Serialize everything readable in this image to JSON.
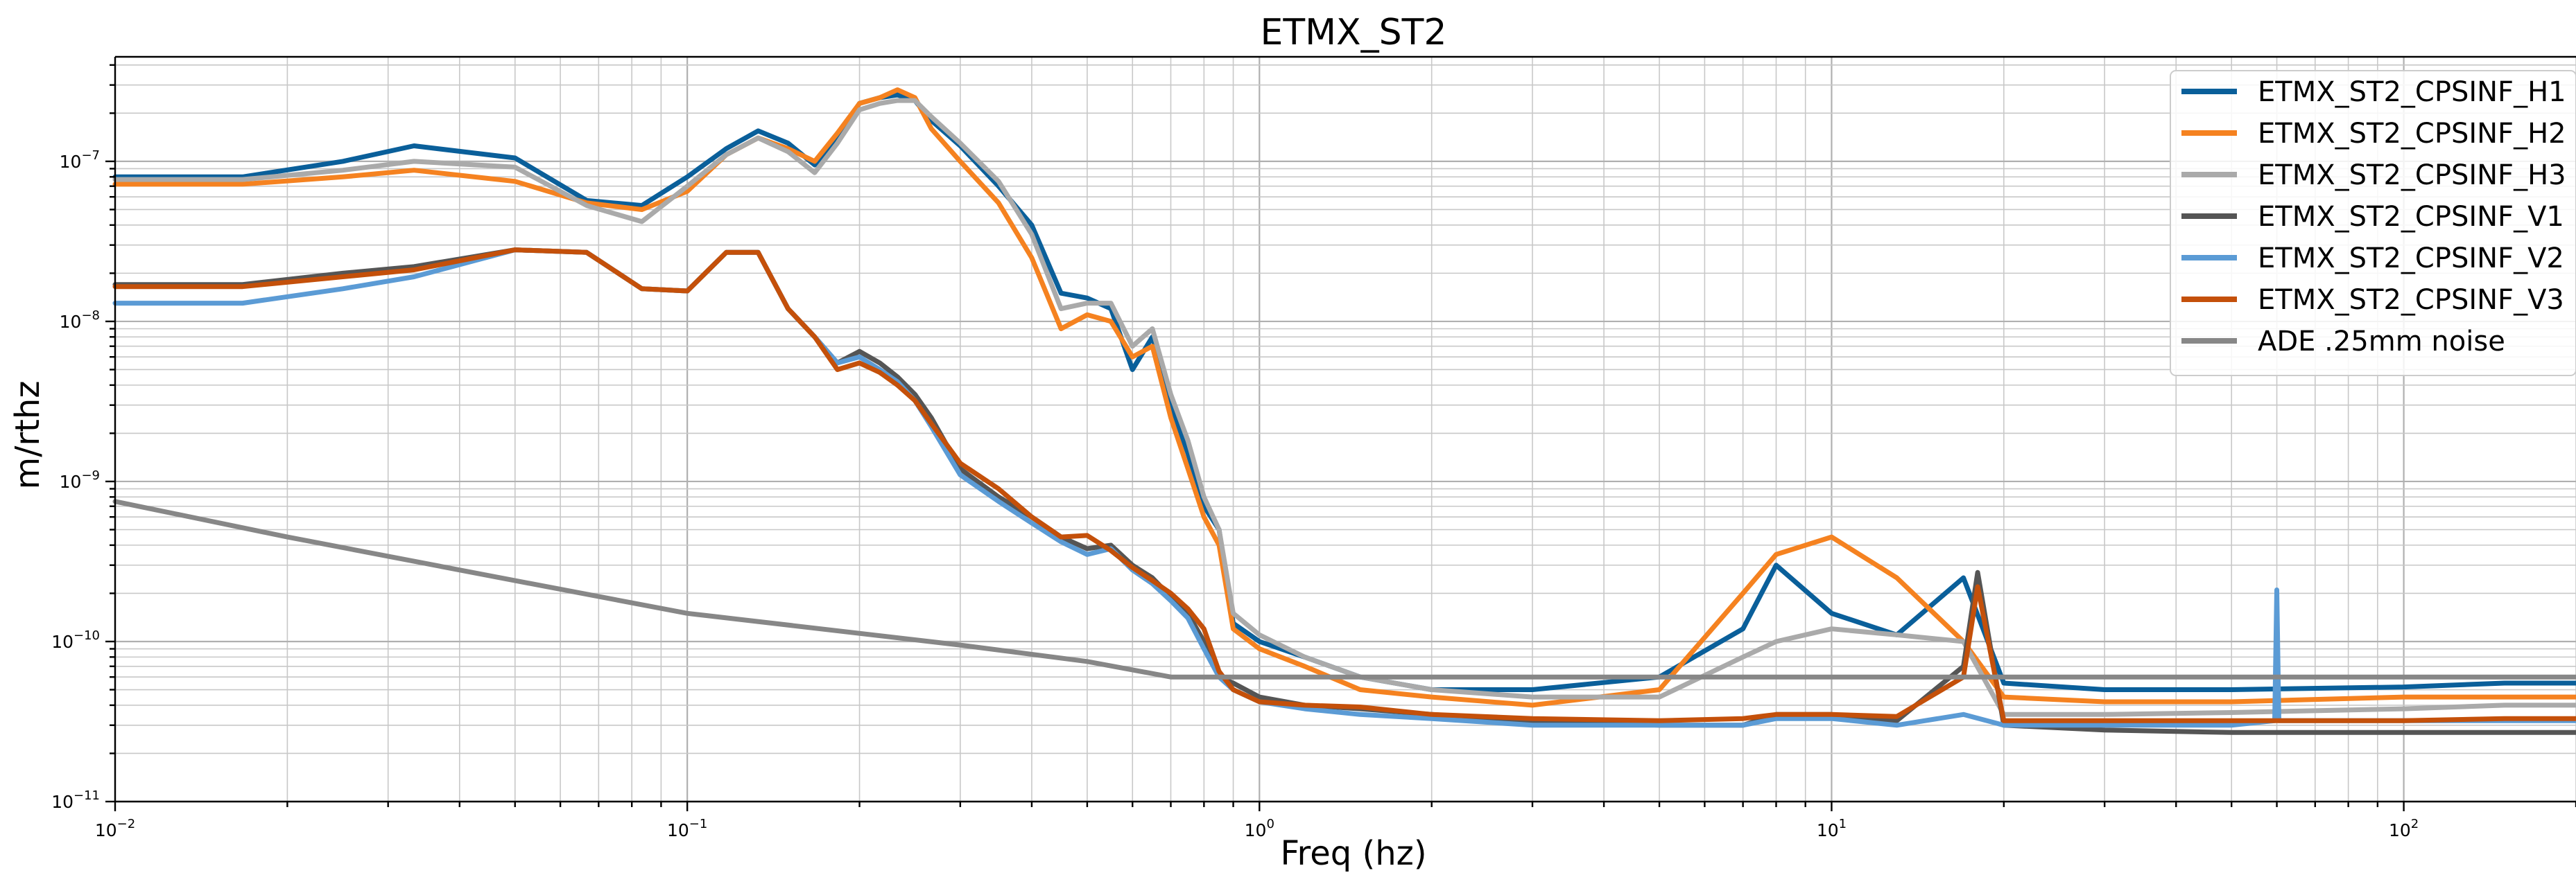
{
  "chart_data": {
    "type": "line",
    "title": "ETMX_ST2",
    "xlabel": "Freq (hz)",
    "ylabel": "m/rthz",
    "xscale": "log",
    "yscale": "log",
    "xlim": [
      0.01,
      200
    ],
    "ylim": [
      1e-11,
      4.5e-07
    ],
    "grid": "on (major and minor)",
    "legend_position": "top-right",
    "x_ticks": [
      {
        "value": 0.01,
        "base": "10",
        "exp": "−2"
      },
      {
        "value": 0.1,
        "base": "10",
        "exp": "−1"
      },
      {
        "value": 1,
        "base": "10",
        "exp": "0"
      },
      {
        "value": 10,
        "base": "10",
        "exp": "1"
      },
      {
        "value": 100,
        "base": "10",
        "exp": "2"
      }
    ],
    "y_ticks": [
      {
        "value": 1e-11,
        "base": "10",
        "exp": "−11"
      },
      {
        "value": 1e-10,
        "base": "10",
        "exp": "−10"
      },
      {
        "value": 1e-09,
        "base": "10",
        "exp": "−9"
      },
      {
        "value": 1e-08,
        "base": "10",
        "exp": "−8"
      },
      {
        "value": 1e-07,
        "base": "10",
        "exp": "−7"
      }
    ],
    "series": [
      {
        "name": "ETMX_ST2_CPSINF_H1",
        "color": "#0a5f9a",
        "x": [
          0.01,
          0.0167,
          0.025,
          0.0333,
          0.05,
          0.0667,
          0.0833,
          0.1,
          0.117,
          0.133,
          0.15,
          0.167,
          0.183,
          0.2,
          0.217,
          0.233,
          0.25,
          0.267,
          0.3,
          0.35,
          0.4,
          0.45,
          0.5,
          0.55,
          0.6,
          0.65,
          0.7,
          0.75,
          0.8,
          0.85,
          0.9,
          1.0,
          1.2,
          1.5,
          2,
          3,
          5,
          7,
          8,
          10,
          13,
          17,
          20,
          30,
          50,
          100,
          150,
          200
        ],
        "y": [
          8e-08,
          8e-08,
          1e-07,
          1.25e-07,
          1.05e-07,
          5.7e-08,
          5.3e-08,
          8e-08,
          1.2e-07,
          1.55e-07,
          1.3e-07,
          9.5e-08,
          1.4e-07,
          2.3e-07,
          2.5e-07,
          2.6e-07,
          2.4e-07,
          1.8e-07,
          1.25e-07,
          7e-08,
          4e-08,
          1.5e-08,
          1.4e-08,
          1.2e-08,
          5e-09,
          8e-09,
          3e-09,
          1.5e-09,
          7e-10,
          5e-10,
          1.3e-10,
          1e-10,
          8e-11,
          6e-11,
          5e-11,
          5e-11,
          6e-11,
          1.2e-10,
          3e-10,
          1.5e-10,
          1.1e-10,
          2.5e-10,
          5.5e-11,
          5e-11,
          5e-11,
          5.2e-11,
          5.5e-11,
          5.5e-11
        ]
      },
      {
        "name": "ETMX_ST2_CPSINF_H2",
        "color": "#f58220",
        "x": [
          0.01,
          0.0167,
          0.025,
          0.0333,
          0.05,
          0.0667,
          0.0833,
          0.1,
          0.117,
          0.133,
          0.15,
          0.167,
          0.183,
          0.2,
          0.217,
          0.233,
          0.25,
          0.267,
          0.3,
          0.35,
          0.4,
          0.45,
          0.5,
          0.55,
          0.6,
          0.65,
          0.7,
          0.75,
          0.8,
          0.85,
          0.9,
          1.0,
          1.2,
          1.5,
          2,
          3,
          5,
          7,
          8,
          10,
          13,
          17,
          20,
          30,
          50,
          100,
          150,
          200
        ],
        "y": [
          7.2e-08,
          7.2e-08,
          8e-08,
          8.8e-08,
          7.5e-08,
          5.5e-08,
          5e-08,
          6.5e-08,
          1.1e-07,
          1.4e-07,
          1.2e-07,
          1e-07,
          1.5e-07,
          2.3e-07,
          2.5e-07,
          2.8e-07,
          2.5e-07,
          1.6e-07,
          1e-07,
          5.5e-08,
          2.5e-08,
          9e-09,
          1.1e-08,
          1e-08,
          6e-09,
          7e-09,
          2.5e-09,
          1.2e-09,
          6e-10,
          4e-10,
          1.2e-10,
          9e-11,
          7e-11,
          5e-11,
          4.5e-11,
          4e-11,
          5e-11,
          2e-10,
          3.5e-10,
          4.5e-10,
          2.5e-10,
          1e-10,
          4.5e-11,
          4.2e-11,
          4.2e-11,
          4.5e-11,
          4.5e-11,
          4.5e-11
        ]
      },
      {
        "name": "ETMX_ST2_CPSINF_H3",
        "color": "#aaaaaa",
        "x": [
          0.01,
          0.0167,
          0.025,
          0.0333,
          0.05,
          0.0667,
          0.0833,
          0.1,
          0.117,
          0.133,
          0.15,
          0.167,
          0.183,
          0.2,
          0.217,
          0.233,
          0.25,
          0.267,
          0.3,
          0.35,
          0.4,
          0.45,
          0.5,
          0.55,
          0.6,
          0.65,
          0.7,
          0.75,
          0.8,
          0.85,
          0.9,
          1.0,
          1.2,
          1.5,
          2,
          3,
          5,
          7,
          8,
          10,
          13,
          17,
          20,
          30,
          50,
          100,
          150,
          200
        ],
        "y": [
          7.7e-08,
          7.7e-08,
          8.8e-08,
          1e-07,
          9.2e-08,
          5.3e-08,
          4.2e-08,
          7e-08,
          1.1e-07,
          1.4e-07,
          1.15e-07,
          8.5e-08,
          1.3e-07,
          2.1e-07,
          2.3e-07,
          2.4e-07,
          2.4e-07,
          1.9e-07,
          1.3e-07,
          7.5e-08,
          3.5e-08,
          1.2e-08,
          1.3e-08,
          1.3e-08,
          7e-09,
          9e-09,
          3.5e-09,
          1.8e-09,
          8e-10,
          5e-10,
          1.5e-10,
          1.1e-10,
          8e-11,
          6e-11,
          5e-11,
          4.5e-11,
          4.5e-11,
          8e-11,
          1e-10,
          1.2e-10,
          1.1e-10,
          1e-10,
          3.5e-11,
          3.5e-11,
          3.6e-11,
          3.8e-11,
          4e-11,
          4e-11
        ]
      },
      {
        "name": "ETMX_ST2_CPSINF_V1",
        "color": "#555555",
        "x": [
          0.01,
          0.0167,
          0.025,
          0.0333,
          0.05,
          0.0667,
          0.0833,
          0.1,
          0.117,
          0.133,
          0.15,
          0.167,
          0.183,
          0.2,
          0.217,
          0.233,
          0.25,
          0.267,
          0.3,
          0.35,
          0.4,
          0.45,
          0.5,
          0.55,
          0.6,
          0.65,
          0.7,
          0.75,
          0.8,
          0.85,
          0.9,
          1.0,
          1.2,
          1.5,
          2,
          3,
          5,
          7,
          8,
          10,
          13,
          17,
          18,
          20,
          30,
          50,
          100,
          150,
          200
        ],
        "y": [
          1.7e-08,
          1.7e-08,
          2e-08,
          2.2e-08,
          2.8e-08,
          2.7e-08,
          1.6e-08,
          1.55e-08,
          2.7e-08,
          2.7e-08,
          1.2e-08,
          8e-09,
          5.5e-09,
          6.5e-09,
          5.5e-09,
          4.5e-09,
          3.5e-09,
          2.5e-09,
          1.2e-09,
          8e-10,
          6e-10,
          4.5e-10,
          3.8e-10,
          4e-10,
          3e-10,
          2.5e-10,
          1.9e-10,
          1.5e-10,
          1e-10,
          6e-11,
          5.5e-11,
          4.5e-11,
          4e-11,
          3.8e-11,
          3.5e-11,
          3.2e-11,
          3e-11,
          3e-11,
          3.5e-11,
          3.5e-11,
          3.2e-11,
          7e-11,
          2.7e-10,
          3e-11,
          2.8e-11,
          2.7e-11,
          2.7e-11,
          2.7e-11,
          2.7e-11
        ]
      },
      {
        "name": "ETMX_ST2_CPSINF_V2",
        "color": "#5b9bd5",
        "x": [
          0.01,
          0.0167,
          0.025,
          0.0333,
          0.05,
          0.0667,
          0.0833,
          0.1,
          0.117,
          0.133,
          0.15,
          0.167,
          0.183,
          0.2,
          0.217,
          0.233,
          0.25,
          0.267,
          0.3,
          0.35,
          0.4,
          0.45,
          0.5,
          0.55,
          0.6,
          0.65,
          0.7,
          0.75,
          0.8,
          0.85,
          0.9,
          1.0,
          1.2,
          1.5,
          2,
          3,
          5,
          7,
          8,
          10,
          13,
          17,
          20,
          30,
          50,
          59.5,
          60,
          60.5,
          100,
          150,
          200
        ],
        "y": [
          1.3e-08,
          1.3e-08,
          1.6e-08,
          1.9e-08,
          2.8e-08,
          2.7e-08,
          1.6e-08,
          1.55e-08,
          2.7e-08,
          2.7e-08,
          1.2e-08,
          8e-09,
          5.5e-09,
          6e-09,
          5e-09,
          4.2e-09,
          3.2e-09,
          2.2e-09,
          1.1e-09,
          7.5e-10,
          5.5e-10,
          4.2e-10,
          3.5e-10,
          3.8e-10,
          2.8e-10,
          2.3e-10,
          1.8e-10,
          1.4e-10,
          9e-11,
          6e-11,
          5e-11,
          4.2e-11,
          3.8e-11,
          3.5e-11,
          3.3e-11,
          3e-11,
          3e-11,
          3e-11,
          3.3e-11,
          3.3e-11,
          3e-11,
          3.5e-11,
          3e-11,
          3e-11,
          3e-11,
          3.2e-11,
          2.1e-10,
          3.2e-11,
          3.2e-11,
          3.2e-11,
          3.2e-11
        ]
      },
      {
        "name": "ETMX_ST2_CPSINF_V3",
        "color": "#c4500a",
        "x": [
          0.01,
          0.0167,
          0.025,
          0.0333,
          0.05,
          0.0667,
          0.0833,
          0.1,
          0.117,
          0.133,
          0.15,
          0.167,
          0.183,
          0.2,
          0.217,
          0.233,
          0.25,
          0.267,
          0.3,
          0.35,
          0.4,
          0.45,
          0.5,
          0.55,
          0.6,
          0.65,
          0.7,
          0.75,
          0.8,
          0.85,
          0.9,
          1.0,
          1.2,
          1.5,
          2,
          3,
          5,
          7,
          8,
          10,
          13,
          17,
          18,
          20,
          30,
          50,
          100,
          150,
          200
        ],
        "y": [
          1.65e-08,
          1.65e-08,
          1.9e-08,
          2.1e-08,
          2.8e-08,
          2.7e-08,
          1.6e-08,
          1.55e-08,
          2.7e-08,
          2.7e-08,
          1.2e-08,
          8e-09,
          5e-09,
          5.5e-09,
          4.8e-09,
          4e-09,
          3.2e-09,
          2.3e-09,
          1.3e-09,
          9e-10,
          6e-10,
          4.5e-10,
          4.6e-10,
          3.7e-10,
          2.9e-10,
          2.4e-10,
          2e-10,
          1.6e-10,
          1.2e-10,
          6.5e-11,
          5e-11,
          4.2e-11,
          4e-11,
          3.9e-11,
          3.5e-11,
          3.3e-11,
          3.2e-11,
          3.3e-11,
          3.5e-11,
          3.5e-11,
          3.4e-11,
          6e-11,
          2.2e-10,
          3.2e-11,
          3.2e-11,
          3.2e-11,
          3.2e-11,
          3.3e-11,
          3.3e-11
        ]
      },
      {
        "name": "ADE .25mm noise",
        "color": "#878787",
        "x": [
          0.01,
          0.02,
          0.05,
          0.1,
          0.3,
          0.5,
          0.7,
          1,
          2,
          5,
          10,
          20,
          50,
          100,
          200
        ],
        "y": [
          7.5e-10,
          4.5e-10,
          2.4e-10,
          1.5e-10,
          9.5e-11,
          7.5e-11,
          6e-11,
          6e-11,
          6e-11,
          6e-11,
          6e-11,
          6e-11,
          6e-11,
          6e-11,
          6e-11
        ]
      }
    ]
  }
}
